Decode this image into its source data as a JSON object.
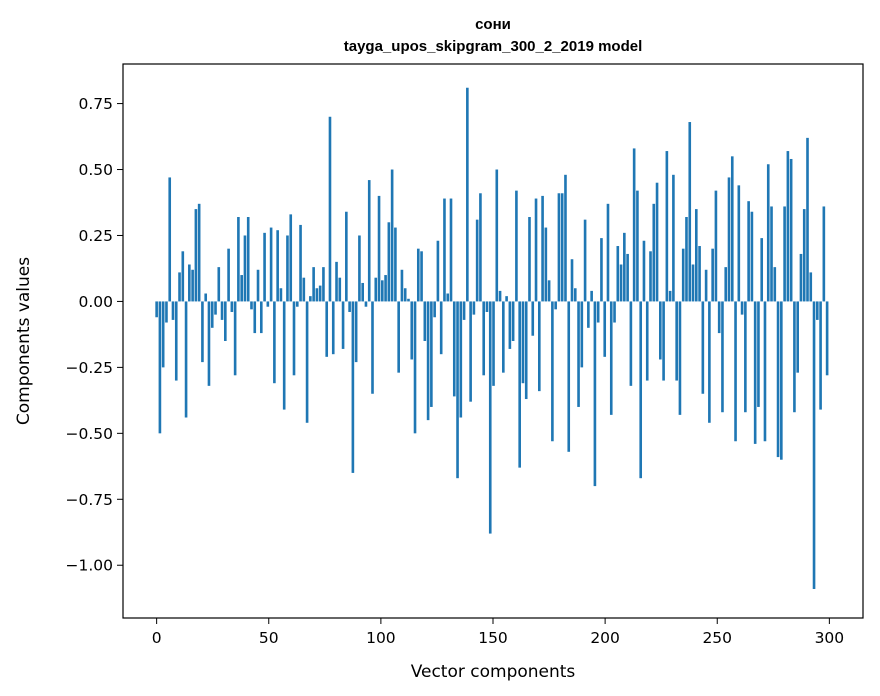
{
  "chart_data": {
    "type": "bar",
    "title": "сони",
    "subtitle": "tayga_upos_skipgram_300_2_2019 model",
    "xlabel": "Vector components",
    "ylabel": "Components values",
    "xlim": [
      -15,
      315
    ],
    "ylim": [
      -1.2,
      0.9
    ],
    "xticks": [
      0,
      50,
      100,
      150,
      200,
      250,
      300
    ],
    "xtick_labels": [
      "0",
      "50",
      "100",
      "150",
      "200",
      "250",
      "300"
    ],
    "yticks": [
      -1.0,
      -0.75,
      -0.5,
      -0.25,
      0.0,
      0.25,
      0.5,
      0.75
    ],
    "ytick_labels": [
      "−1.00",
      "−0.75",
      "−0.50",
      "−0.25",
      "0.00",
      "0.25",
      "0.50",
      "0.75"
    ],
    "grid": false,
    "bar_color": "#1f77b4",
    "values": [
      -0.06,
      -0.5,
      -0.25,
      -0.08,
      0.47,
      -0.07,
      -0.3,
      0.11,
      0.19,
      -0.44,
      0.14,
      0.12,
      0.35,
      0.37,
      -0.23,
      0.03,
      -0.32,
      -0.1,
      -0.05,
      0.13,
      -0.07,
      -0.15,
      0.2,
      -0.04,
      -0.28,
      0.32,
      0.1,
      0.25,
      0.32,
      -0.03,
      -0.12,
      0.12,
      -0.12,
      0.26,
      -0.02,
      0.28,
      -0.31,
      0.27,
      0.05,
      -0.41,
      0.25,
      0.33,
      -0.28,
      -0.02,
      0.29,
      0.09,
      -0.46,
      0.02,
      0.13,
      0.05,
      0.06,
      0.13,
      -0.21,
      0.7,
      -0.2,
      0.15,
      0.09,
      -0.18,
      0.34,
      -0.04,
      -0.65,
      -0.23,
      0.25,
      0.07,
      -0.02,
      0.46,
      -0.35,
      0.09,
      0.4,
      0.08,
      0.1,
      0.3,
      0.5,
      0.28,
      -0.27,
      0.12,
      0.05,
      0.01,
      -0.22,
      -0.5,
      0.2,
      0.19,
      -0.15,
      -0.45,
      -0.4,
      -0.06,
      0.23,
      -0.2,
      0.39,
      0.03,
      0.39,
      -0.36,
      -0.67,
      -0.44,
      -0.07,
      0.81,
      -0.38,
      -0.05,
      0.31,
      0.41,
      -0.28,
      -0.04,
      -0.88,
      -0.32,
      0.5,
      0.04,
      -0.27,
      0.02,
      -0.18,
      -0.15,
      0.42,
      -0.63,
      -0.31,
      -0.37,
      0.32,
      -0.13,
      0.39,
      -0.34,
      0.4,
      0.28,
      0.08,
      -0.53,
      -0.03,
      0.41,
      0.41,
      0.48,
      -0.57,
      0.16,
      0.05,
      -0.4,
      -0.25,
      0.31,
      -0.1,
      0.04,
      -0.7,
      -0.08,
      0.24,
      -0.21,
      0.37,
      -0.43,
      -0.08,
      0.21,
      0.14,
      0.26,
      0.18,
      -0.32,
      0.58,
      0.42,
      -0.67,
      0.23,
      -0.3,
      0.19,
      0.37,
      0.45,
      -0.22,
      -0.3,
      0.57,
      0.04,
      0.48,
      -0.3,
      -0.43,
      0.2,
      0.32,
      0.68,
      0.14,
      0.35,
      0.21,
      -0.35,
      0.12,
      -0.46,
      0.2,
      0.42,
      -0.12,
      -0.42,
      0.13,
      0.47,
      0.55,
      -0.53,
      0.44,
      -0.05,
      -0.42,
      0.38,
      0.34,
      -0.54,
      -0.4,
      0.24,
      -0.53,
      0.52,
      0.36,
      0.13,
      -0.59,
      -0.6,
      0.36,
      0.57,
      0.54,
      -0.42,
      -0.27,
      0.18,
      0.35,
      0.62,
      0.11,
      -1.09,
      -0.07,
      -0.41,
      0.36,
      -0.28
    ],
    "sampled": true
  }
}
